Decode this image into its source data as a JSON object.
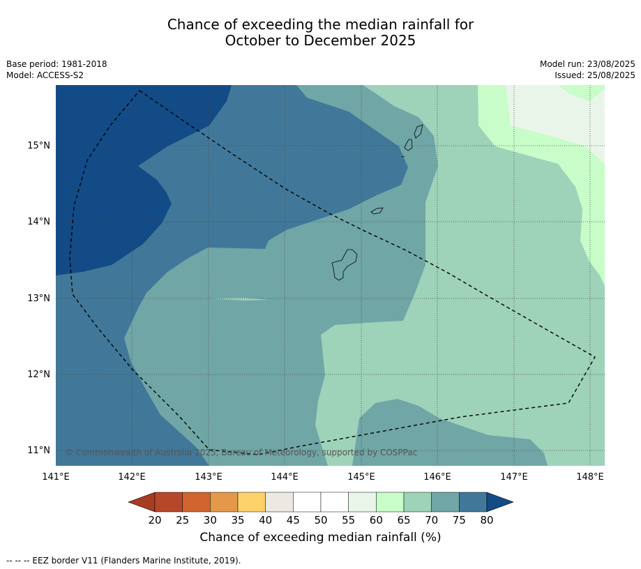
{
  "title_line1": "Chance of exceeding the median rainfall for",
  "title_line2": "October to December 2025",
  "base_period": "Base period: 1981-2018",
  "model": "Model: ACCESS-S2",
  "model_run": "Model run: 23/08/2025",
  "issued": "Issued: 25/08/2025",
  "lon_ticks": [
    "141°E",
    "142°E",
    "143°E",
    "144°E",
    "145°E",
    "146°E",
    "147°E",
    "148°E"
  ],
  "lat_ticks": [
    "15°N",
    "14°N",
    "13°N",
    "12°N",
    "11°N"
  ],
  "copyright": "© Commonwealth of Australia 2025, Bureau of Meteorology, supported by COSPPac",
  "colorbar": {
    "ticks": [
      "20",
      "25",
      "30",
      "35",
      "40",
      "45",
      "50",
      "55",
      "60",
      "65",
      "70",
      "75",
      "80"
    ],
    "colors": [
      "#b5482a",
      "#d0652f",
      "#e4984a",
      "#fdd26a",
      "#ebe9e2",
      "#ffffff",
      "#ffffff",
      "#eaf5ea",
      "#c8fcc8",
      "#9ed2b9",
      "#70a6a6",
      "#417899"
    ],
    "under_color": "#a83c22",
    "over_color": "#134b86",
    "label": "Chance of exceeding median rainfall (%)"
  },
  "legend_text": "--  --  -- EEZ border V11 (Flanders Marine Institute, 2019).",
  "colors": {
    "c80": "#134b86",
    "c75": "#417899",
    "c70": "#70a6a6",
    "c65": "#9ed2b9",
    "c60": "#c8fcc8",
    "c55": "#eaf5ea"
  }
}
